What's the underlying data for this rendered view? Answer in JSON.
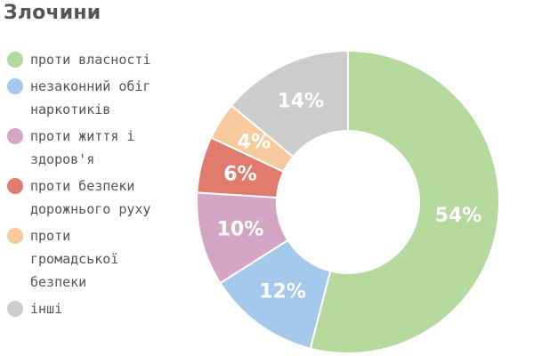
{
  "chart_data": {
    "type": "pie",
    "title": "Злочини",
    "donut": true,
    "legend_position": "left",
    "categories": [
      "проти власності",
      "незаконний обіг наркотиків",
      "проти життя і здоров'я",
      "проти безпеки дорожнього руху",
      "проти громадської безпеки",
      "інші"
    ],
    "legend_lines": [
      "проти власності",
      "незаконний обіг\nнаркотиків",
      "проти життя і\nздоров'я",
      "проти безпеки\nдорожнього руху",
      "проти\nгромадської\nбезпеки",
      "інші"
    ],
    "values": [
      54,
      12,
      10,
      6,
      4,
      14
    ],
    "labels": [
      "54%",
      "12%",
      "10%",
      "6%",
      "4%",
      "14%"
    ],
    "colors": [
      "#b5d99c",
      "#a4c8ec",
      "#d5a6c4",
      "#e07a6c",
      "#f7c99c",
      "#cccccc"
    ]
  }
}
